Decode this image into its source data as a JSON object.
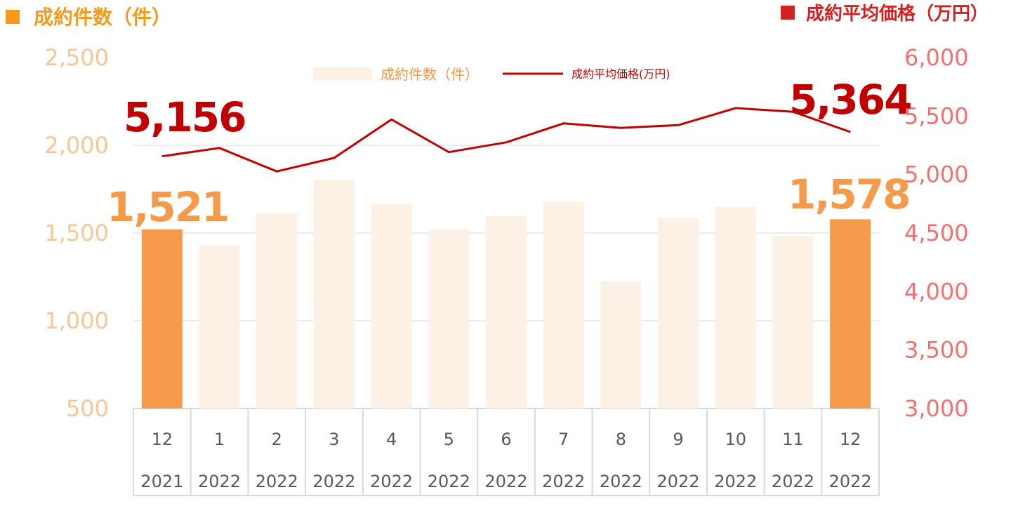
{
  "titles": {
    "left": "成約件数（件）",
    "right": "成約平均価格（万円）"
  },
  "legend": {
    "bars": "成約件数（件）",
    "line": "成約平均価格(万円)"
  },
  "callouts": {
    "bar_first": "1,521",
    "bar_last": "1,578",
    "line_first": "5,156",
    "line_last": "5,364"
  },
  "colors": {
    "bar_highlight": "#f5994a",
    "bar_normal": "#fdf1e6",
    "line": "#c00000",
    "left_axis_text": "#f8c595",
    "right_axis_text": "#f46f6f",
    "left_title": "#f59a1b",
    "right_title": "#d62020",
    "callout_bar": "#f5994a",
    "callout_line": "#c00000"
  },
  "chart_data": {
    "type": "bar",
    "categories": [
      "12",
      "1",
      "2",
      "3",
      "4",
      "5",
      "6",
      "7",
      "8",
      "9",
      "10",
      "11",
      "12"
    ],
    "years": [
      "2021",
      "2022",
      "2022",
      "2022",
      "2022",
      "2022",
      "2022",
      "2022",
      "2022",
      "2022",
      "2022",
      "2022",
      "2022"
    ],
    "y_left": {
      "ylim": [
        500,
        2500
      ],
      "ticks": [
        "500",
        "1,000",
        "1,500",
        "2,000",
        "2,500"
      ],
      "tick_values": [
        500,
        1000,
        1500,
        2000,
        2500
      ]
    },
    "y_right": {
      "ylim": [
        3000,
        6000
      ],
      "ticks": [
        "3,000",
        "3,500",
        "4,000",
        "4,500",
        "5,000",
        "5,500",
        "6,000"
      ],
      "tick_values": [
        3000,
        3500,
        4000,
        4500,
        5000,
        5500,
        6000
      ]
    },
    "series": [
      {
        "name": "成約件数（件）",
        "type": "bar",
        "axis": "left",
        "values": [
          1521,
          1430,
          1614,
          1804,
          1664,
          1521,
          1597,
          1676,
          1224,
          1585,
          1648,
          1482,
          1578
        ],
        "highlight": [
          true,
          false,
          false,
          false,
          false,
          false,
          false,
          false,
          false,
          false,
          false,
          false,
          true
        ]
      },
      {
        "name": "成約平均価格(万円)",
        "type": "line",
        "axis": "right",
        "values": [
          5156,
          5227,
          5027,
          5142,
          5471,
          5192,
          5275,
          5437,
          5399,
          5422,
          5568,
          5537,
          5364
        ]
      }
    ],
    "grid": true,
    "legend_position": "top-center"
  }
}
